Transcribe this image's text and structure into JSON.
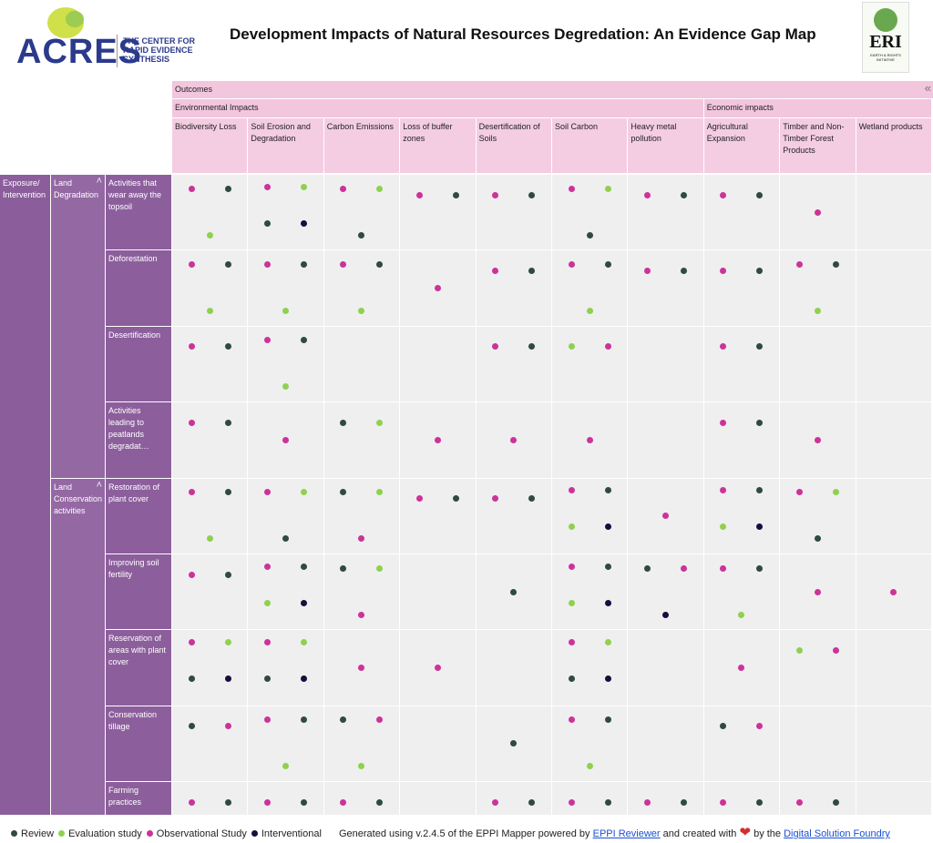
{
  "header": {
    "logo_left": {
      "name": "ACRES",
      "tagline": [
        "THE CENTER FOR",
        "RAPID EVIDENCE",
        "SYNTHESIS"
      ]
    },
    "title": "Development Impacts of Natural Resources Degredation: An Evidence Gap Map",
    "logo_right": {
      "name": "ERI",
      "tagline": "EARTH & RIGHTS INITIATIVE"
    }
  },
  "map": {
    "outcomes_label": "Outcomes",
    "exposure_label": "Exposure/ Intervention",
    "outcome_groups": [
      {
        "label": "Environmental Impacts",
        "columns": [
          "Biodiversity Loss",
          "Soil Erosion and Degradation",
          "Carbon Emissions",
          "Loss of buffer zones",
          "Desertification of Soils",
          "Soil Carbon",
          "Heavy metal pollution"
        ]
      },
      {
        "label": "Economic impacts",
        "columns": [
          "Agricultural Expansion",
          "Timber and Non-Timber Forest Products",
          "Wetland products"
        ]
      }
    ],
    "intervention_groups": [
      {
        "label": "Land Degradation",
        "rows": [
          "Activities that wear away the topsoil",
          "Deforestation",
          "Desertification",
          "Activities leading to peatlands degradat…"
        ]
      },
      {
        "label": "Land Conservation activities",
        "rows": [
          "Restoration of plant cover",
          "Improving soil fertility",
          "Reservation of areas with plant cover",
          "Conservation tillage",
          "Farming practices"
        ]
      }
    ],
    "cells": [
      [
        [
          2,
          0,
          1
        ],
        [
          2,
          1,
          0,
          3
        ],
        [
          2,
          1,
          0
        ],
        [
          2,
          0
        ],
        [
          2,
          0
        ],
        [
          2,
          1,
          0
        ],
        [
          2,
          0
        ],
        [
          2,
          0
        ],
        [
          2
        ],
        []
      ],
      [
        [
          2,
          0,
          1
        ],
        [
          2,
          0,
          1
        ],
        [
          2,
          0,
          1
        ],
        [
          2
        ],
        [
          2,
          0
        ],
        [
          2,
          0,
          1
        ],
        [
          2,
          0
        ],
        [
          2,
          0
        ],
        [
          2,
          0,
          1
        ],
        []
      ],
      [
        [
          2,
          0
        ],
        [
          2,
          0,
          1
        ],
        [],
        [],
        [
          2,
          0
        ],
        [
          1,
          2
        ],
        [],
        [
          2,
          0
        ],
        [],
        []
      ],
      [
        [
          2,
          0
        ],
        [
          2
        ],
        [
          0,
          1
        ],
        [
          2
        ],
        [
          2
        ],
        [
          2
        ],
        [],
        [
          2,
          0
        ],
        [
          2
        ],
        []
      ],
      [
        [
          2,
          0,
          1
        ],
        [
          2,
          1,
          0
        ],
        [
          0,
          1,
          2
        ],
        [
          2,
          0
        ],
        [
          2,
          0
        ],
        [
          2,
          0,
          1,
          3
        ],
        [
          2
        ],
        [
          2,
          0,
          1,
          3
        ],
        [
          2,
          1,
          0
        ],
        []
      ],
      [
        [
          2,
          0
        ],
        [
          2,
          0,
          1,
          3
        ],
        [
          0,
          1,
          2
        ],
        [],
        [
          0
        ],
        [
          2,
          0,
          1,
          3
        ],
        [
          0,
          2,
          3
        ],
        [
          2,
          0,
          1
        ],
        [
          2
        ],
        [
          2
        ]
      ],
      [
        [
          2,
          1,
          0,
          3
        ],
        [
          2,
          1,
          0,
          3
        ],
        [
          2
        ],
        [
          2
        ],
        [],
        [
          2,
          1,
          0,
          3
        ],
        [],
        [
          2
        ],
        [
          1,
          2
        ],
        []
      ],
      [
        [
          0,
          2
        ],
        [
          2,
          0,
          1
        ],
        [
          0,
          2,
          1
        ],
        [],
        [
          0
        ],
        [
          2,
          0,
          1
        ],
        [],
        [
          0,
          2
        ],
        [],
        []
      ],
      [
        [
          2,
          0
        ],
        [
          2,
          0
        ],
        [
          2,
          0
        ],
        [],
        [
          2,
          0
        ],
        [
          2,
          0
        ],
        [
          2,
          0
        ],
        [
          2,
          0
        ],
        [
          2,
          0
        ],
        []
      ]
    ]
  },
  "legend": [
    {
      "label": "Review",
      "color": "#2f4a3e"
    },
    {
      "label": "Evaluation study",
      "color": "#8fd14f"
    },
    {
      "label": "Observational Study",
      "color": "#cc3399"
    },
    {
      "label": "Interventional",
      "color": "#1c0b3f"
    }
  ],
  "footer": {
    "text_1": "Generated using v.2.4.5 of the EPPI Mapper powered by",
    "link_1": "EPPI Reviewer",
    "text_2": "and created with",
    "text_3": "by the",
    "link_2": "Digital Solution Foundry"
  }
}
